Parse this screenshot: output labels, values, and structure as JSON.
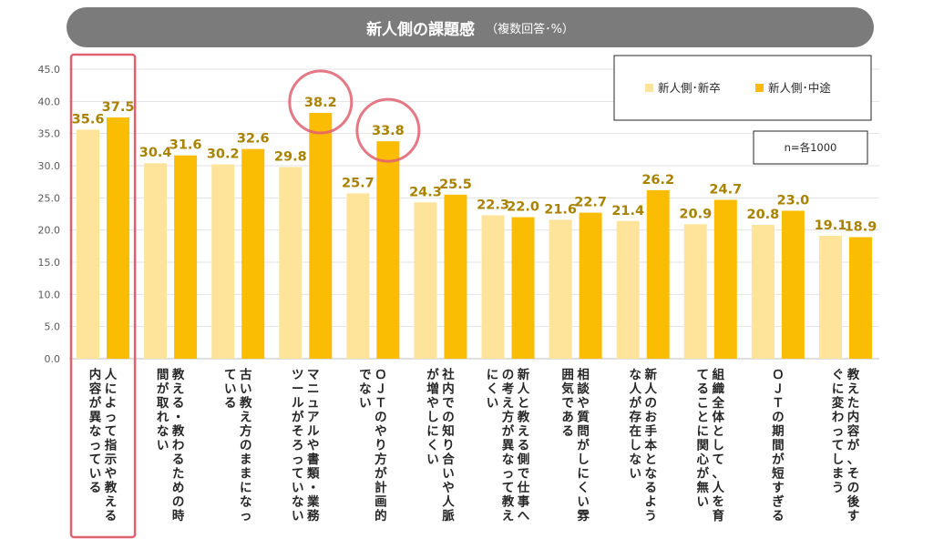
{
  "chart_data": {
    "type": "bar",
    "title": "新人側の課題感",
    "subtitle": "（複数回答･%）",
    "note": "n=各1000",
    "ylim": [
      0,
      45
    ],
    "yticks": [
      "0.0",
      "5.0",
      "10.0",
      "15.0",
      "20.0",
      "25.0",
      "30.0",
      "35.0",
      "40.0",
      "45.0"
    ],
    "legend_position": "top-right",
    "colors": {
      "新卒": "#fde49a",
      "中途": "#fbbc04",
      "label": "#a88200",
      "highlight": "#e06070"
    },
    "categories": [
      "人によって指示や教える内容が異なっている",
      "教える・教わるための時間が取れない",
      "古い教え方のままになっている",
      "マニュアルや書類・業務ツールがそろっていない",
      "ＯＪＴのやり方が計画的でない",
      "社内での知り合いや人脈が増やしにくい",
      "新人と教える側で仕事への考え方が異なって教えにくい",
      "相談や質問がしにくい雰囲気である",
      "新人のお手本となるような人が存在しない",
      "組織全体として、人を育てることに関心が無い",
      "ＯＪＴの期間が短すぎる",
      "教えた内容が、その後すぐに変わってしまう"
    ],
    "series": [
      {
        "name": "新人側･新卒",
        "values": [
          35.6,
          30.4,
          30.2,
          29.8,
          25.7,
          24.3,
          22.3,
          21.6,
          21.4,
          20.9,
          20.8,
          19.1
        ]
      },
      {
        "name": "新人側･中途",
        "values": [
          37.5,
          31.6,
          32.6,
          38.2,
          33.8,
          25.5,
          22.0,
          22.7,
          26.2,
          24.7,
          23.0,
          18.9
        ]
      }
    ],
    "highlights": {
      "category_box": 0,
      "circled": [
        [
          3,
          1
        ],
        [
          4,
          1
        ]
      ]
    }
  }
}
